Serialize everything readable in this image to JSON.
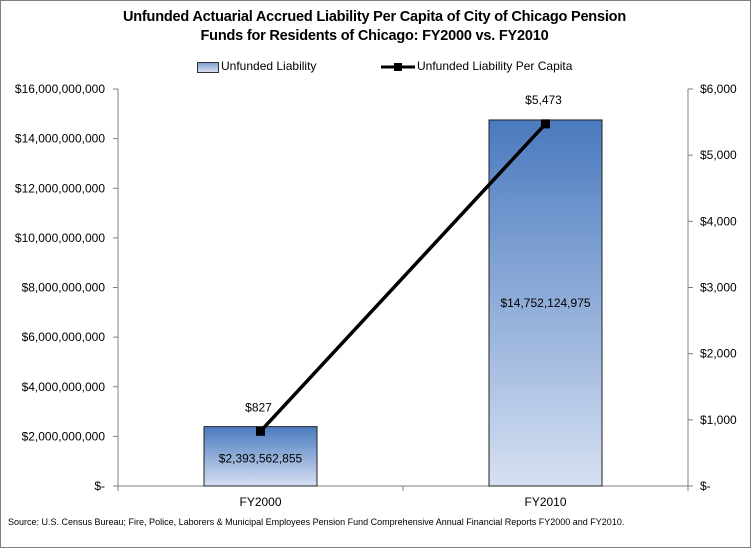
{
  "chart_data": {
    "type": "bar",
    "title_lines": [
      "Unfunded Actuarial Accrued Liability Per Capita of City of Chicago Pension",
      "Funds for Residents of Chicago: FY2000 vs. FY2010"
    ],
    "categories": [
      "FY2000",
      "FY2010"
    ],
    "series": [
      {
        "name": "Unfunded Liability",
        "type": "bar",
        "axis": "left",
        "values": [
          2393562855,
          14752124975
        ],
        "labels": [
          "$2,393,562,855",
          "$14,752,124,975"
        ]
      },
      {
        "name": "Unfunded Liability Per Capita",
        "type": "line",
        "axis": "right",
        "values": [
          827,
          5473
        ],
        "labels": [
          "$827",
          "$5,473"
        ]
      }
    ],
    "ylim_left": [
      0,
      16000000000
    ],
    "ylim_right": [
      0,
      6000
    ],
    "left_ticks": [
      "$-",
      "$2,000,000,000",
      "$4,000,000,000",
      "$6,000,000,000",
      "$8,000,000,000",
      "$10,000,000,000",
      "$12,000,000,000",
      "$14,000,000,000",
      "$16,000,000,000"
    ],
    "right_ticks": [
      "$-",
      "$1,000",
      "$2,000",
      "$3,000",
      "$4,000",
      "$5,000",
      "$6,000"
    ],
    "legend_position": "top",
    "grid": false,
    "colors": {
      "bar_top": "#4a7abf",
      "bar_bottom": "#d6e0f2",
      "line": "#000000"
    }
  },
  "source_note": "Source: U.S. Census Bureau; Fire, Police, Laborers & Municipal Employees Pension Fund Comprehensive Annual Financial Reports FY2000 and FY2010."
}
